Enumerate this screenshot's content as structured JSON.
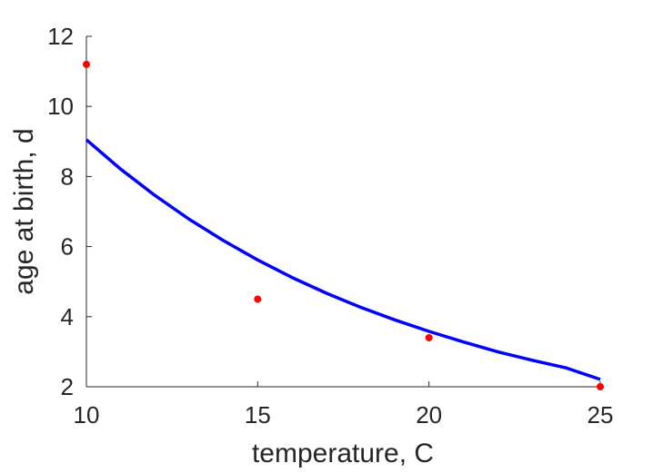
{
  "chart_data": {
    "type": "line",
    "xlabel": "temperature, C",
    "ylabel": "age at birth, d",
    "xlim": [
      10,
      25
    ],
    "ylim": [
      2,
      12
    ],
    "xticks": [
      10,
      15,
      20,
      25
    ],
    "yticks": [
      2,
      4,
      6,
      8,
      10,
      12
    ],
    "grid": false,
    "box": false,
    "series": [
      {
        "type": "line",
        "color": "#0000ff",
        "x": [
          10,
          11,
          12,
          13,
          14,
          15,
          16,
          17,
          18,
          19,
          20,
          21,
          22,
          23,
          24,
          25
        ],
        "y": [
          9.05,
          8.21,
          7.46,
          6.78,
          6.17,
          5.62,
          5.12,
          4.67,
          4.27,
          3.91,
          3.58,
          3.28,
          3.0,
          2.76,
          2.54,
          2.21
        ]
      },
      {
        "type": "scatter",
        "color": "#ff0000",
        "x": [
          10,
          15,
          20,
          25
        ],
        "y": [
          11.2,
          4.5,
          3.4,
          2.0
        ]
      }
    ]
  }
}
